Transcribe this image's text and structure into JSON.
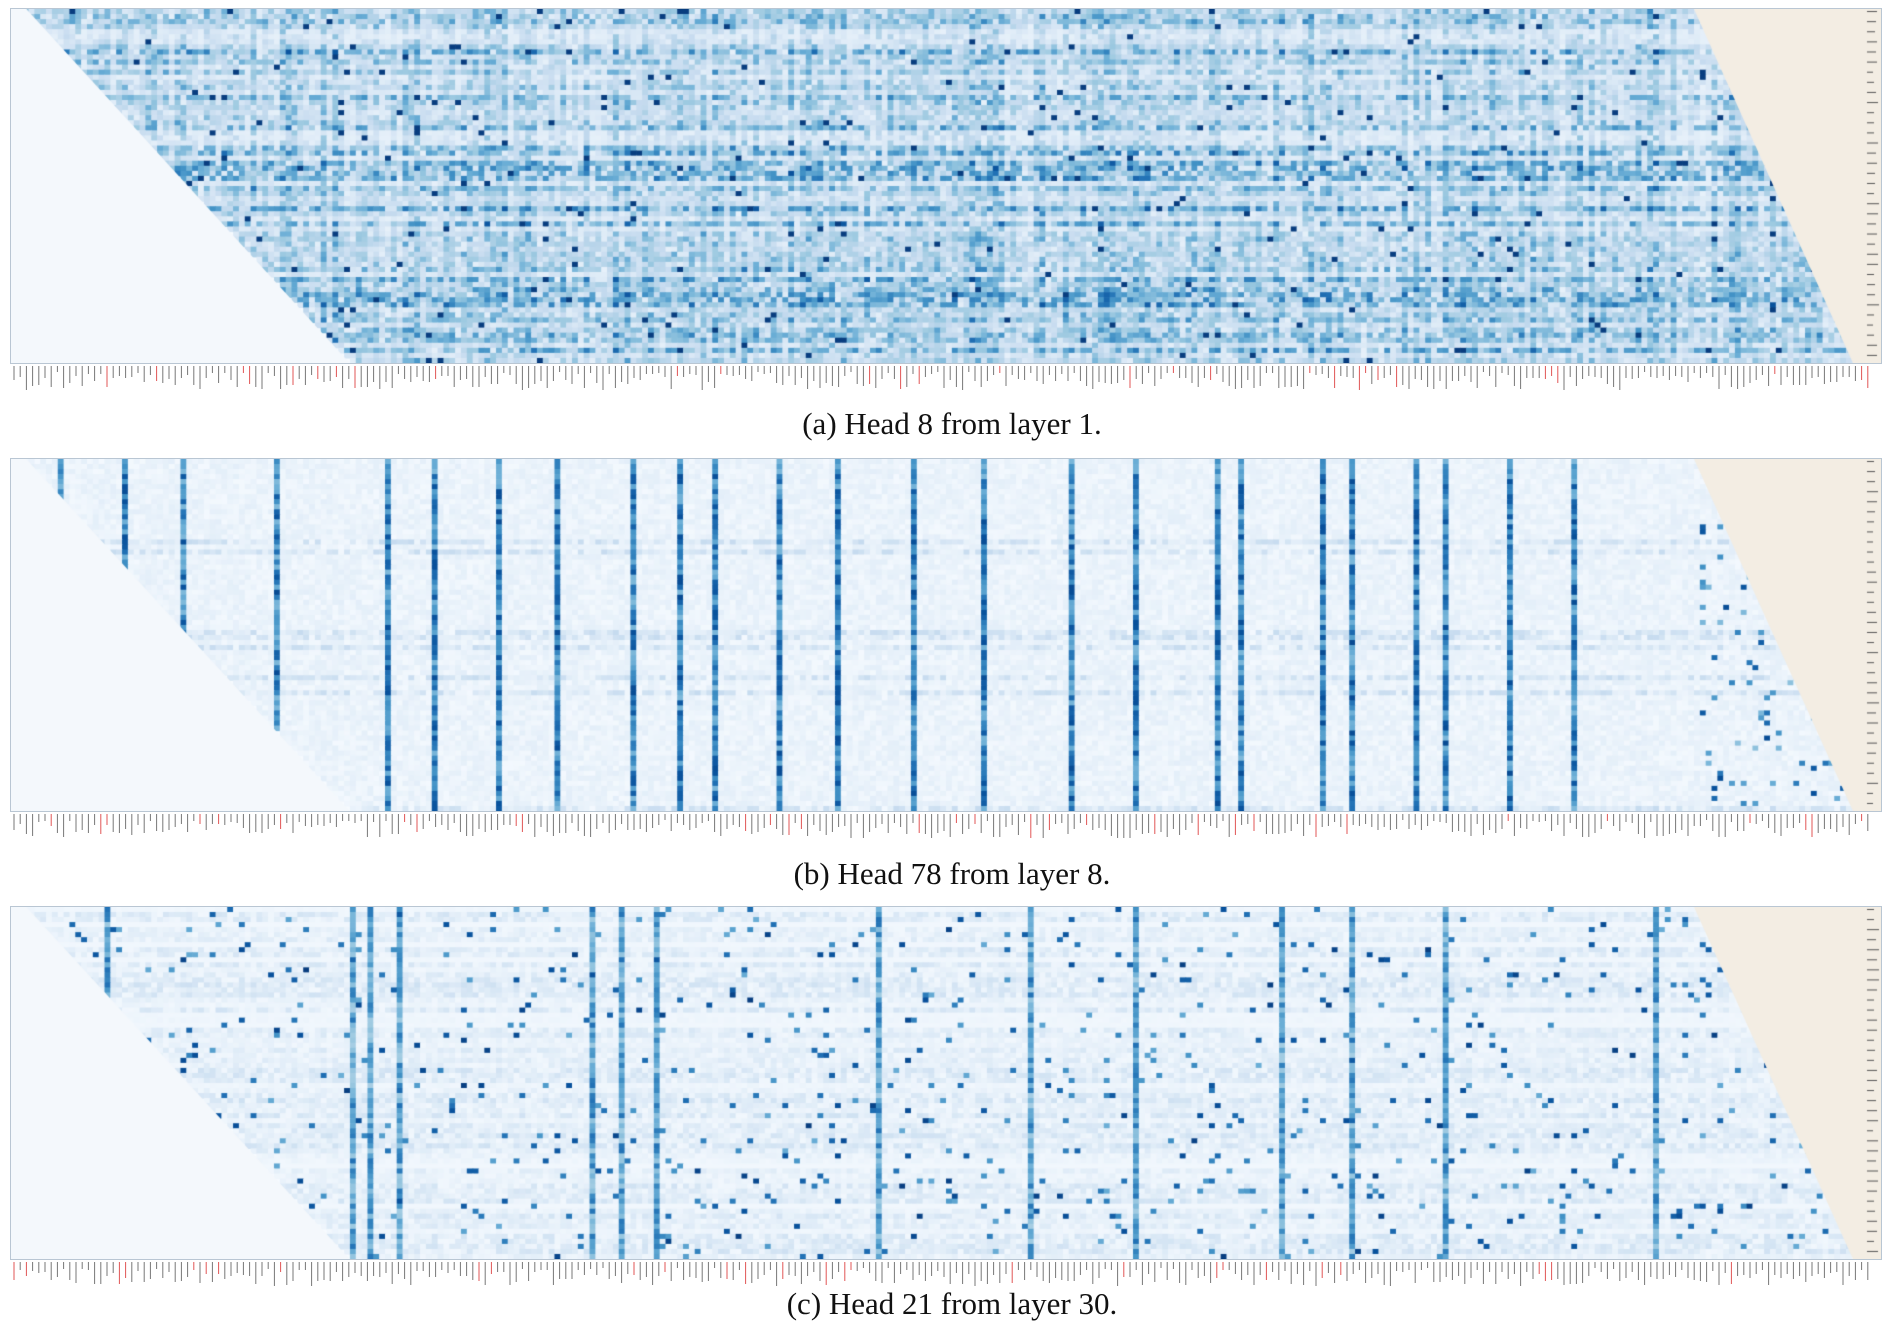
{
  "chart_data": [
    {
      "type": "heatmap",
      "caption": "(a) Head 8 from layer 1.",
      "pattern": "diffuse",
      "colormap": "Blues",
      "mask_color": "#f3ede3",
      "highlight_tick_color": "#e05555"
    },
    {
      "type": "heatmap",
      "caption": "(b) Head 78 from layer 8.",
      "pattern": "vertical-stripes",
      "colormap": "Blues",
      "mask_color": "#f3ede3",
      "highlight_tick_color": "#e05555"
    },
    {
      "type": "heatmap",
      "caption": "(c) Head 21 from layer 30.",
      "pattern": "sparse",
      "colormap": "Blues",
      "mask_color": "#f3ede3",
      "highlight_tick_color": "#e05555"
    }
  ]
}
